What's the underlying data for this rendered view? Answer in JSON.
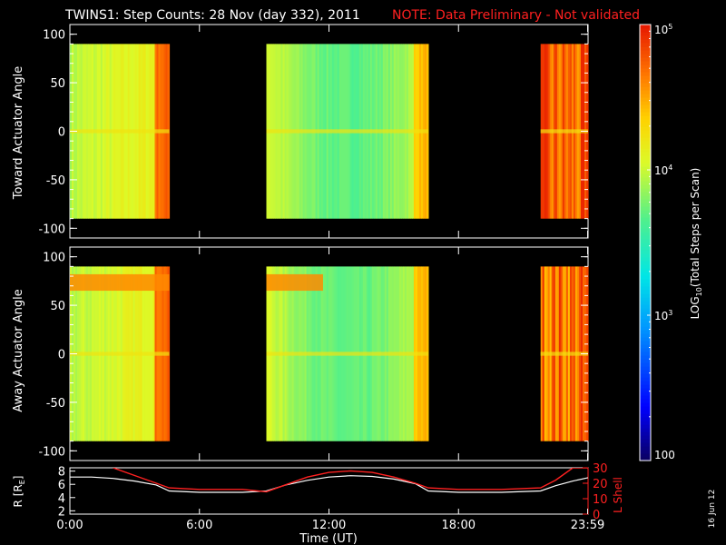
{
  "header": {
    "title": "TWINS1: Step Counts: 28 Nov (day 332), 2011",
    "note": "NOTE: Data Preliminary - Not validated"
  },
  "footer": {
    "date_stamp": "16 Jun 12"
  },
  "colors": {
    "background": "#000000",
    "note": "#ff2020",
    "axis": "#ffffff",
    "r_line": "#ffffff",
    "lshell_line": "#ff2020"
  },
  "chart_data": [
    {
      "type": "heatmap",
      "ylabel": "Toward Actuator Angle",
      "ylim": [
        -110,
        110
      ],
      "yticks": [
        -100,
        -50,
        0,
        50,
        100
      ],
      "xlim": [
        0,
        24
      ],
      "data_blocks_hours": [
        [
          0.0,
          4.6
        ],
        [
          9.1,
          16.6
        ],
        [
          21.8,
          24.0
        ]
      ],
      "angle_range": [
        -90,
        90
      ]
    },
    {
      "type": "heatmap",
      "ylabel": "Away Actuator Angle",
      "ylim": [
        -110,
        110
      ],
      "yticks": [
        -100,
        -50,
        0,
        50,
        100
      ],
      "xlim": [
        0,
        24
      ],
      "data_blocks_hours": [
        [
          0.0,
          4.6
        ],
        [
          9.1,
          16.6
        ],
        [
          21.8,
          24.0
        ]
      ],
      "angle_range": [
        -90,
        90
      ]
    },
    {
      "type": "colorbar",
      "label": "LOG",
      "label_sub": "10",
      "label_rest": "(Total Steps per Scan)",
      "scale": "log",
      "range": [
        100,
        100000
      ],
      "tick_labels": [
        {
          "base": "10",
          "exp": "5",
          "value": 100000
        },
        {
          "base": "10",
          "exp": "4",
          "value": 10000
        },
        {
          "base": "10",
          "exp": "3",
          "value": 1000
        },
        {
          "base": "100",
          "exp": "",
          "value": 100
        }
      ]
    },
    {
      "type": "line",
      "xlabel": "Time (UT)",
      "xtick_labels": [
        "0:00",
        "6:00",
        "12:00",
        "18:00",
        "23:59"
      ],
      "xticks": [
        0,
        6,
        12,
        18,
        23.98
      ],
      "ylabel": "R [R",
      "ylabel_sub": "E",
      "ylabel_end": "]",
      "ylim": [
        1.5,
        8.5
      ],
      "yticks": [
        2,
        4,
        6,
        8
      ],
      "ylabel_right": "L Shell",
      "ylim_right": [
        0,
        30
      ],
      "yticks_right": [
        0,
        10,
        20,
        30
      ],
      "series": [
        {
          "name": "R",
          "x": [
            0,
            1,
            2,
            3,
            4,
            4.6,
            6,
            8,
            9.1,
            10,
            11,
            12,
            13,
            14,
            15,
            16,
            16.6,
            18,
            20,
            21.8,
            22.5,
            23.3,
            24
          ],
          "values": [
            7.1,
            7.1,
            6.9,
            6.5,
            5.9,
            5.0,
            4.8,
            4.8,
            5.0,
            5.9,
            6.6,
            7.1,
            7.3,
            7.2,
            6.8,
            6.1,
            5.0,
            4.8,
            4.8,
            5.0,
            5.8,
            6.5,
            7.0
          ]
        },
        {
          "name": "L Shell",
          "x": [
            2.0,
            3,
            4,
            4.6,
            6,
            8,
            9.1,
            10,
            11,
            12,
            13,
            14,
            15,
            16,
            16.6,
            18,
            20,
            21.8,
            22.5,
            23.3,
            24
          ],
          "values": [
            30,
            25,
            20,
            17,
            16,
            16,
            14.5,
            19,
            24,
            27,
            28,
            27,
            24,
            20,
            17,
            16,
            16,
            17,
            22,
            30,
            30
          ]
        }
      ]
    }
  ]
}
